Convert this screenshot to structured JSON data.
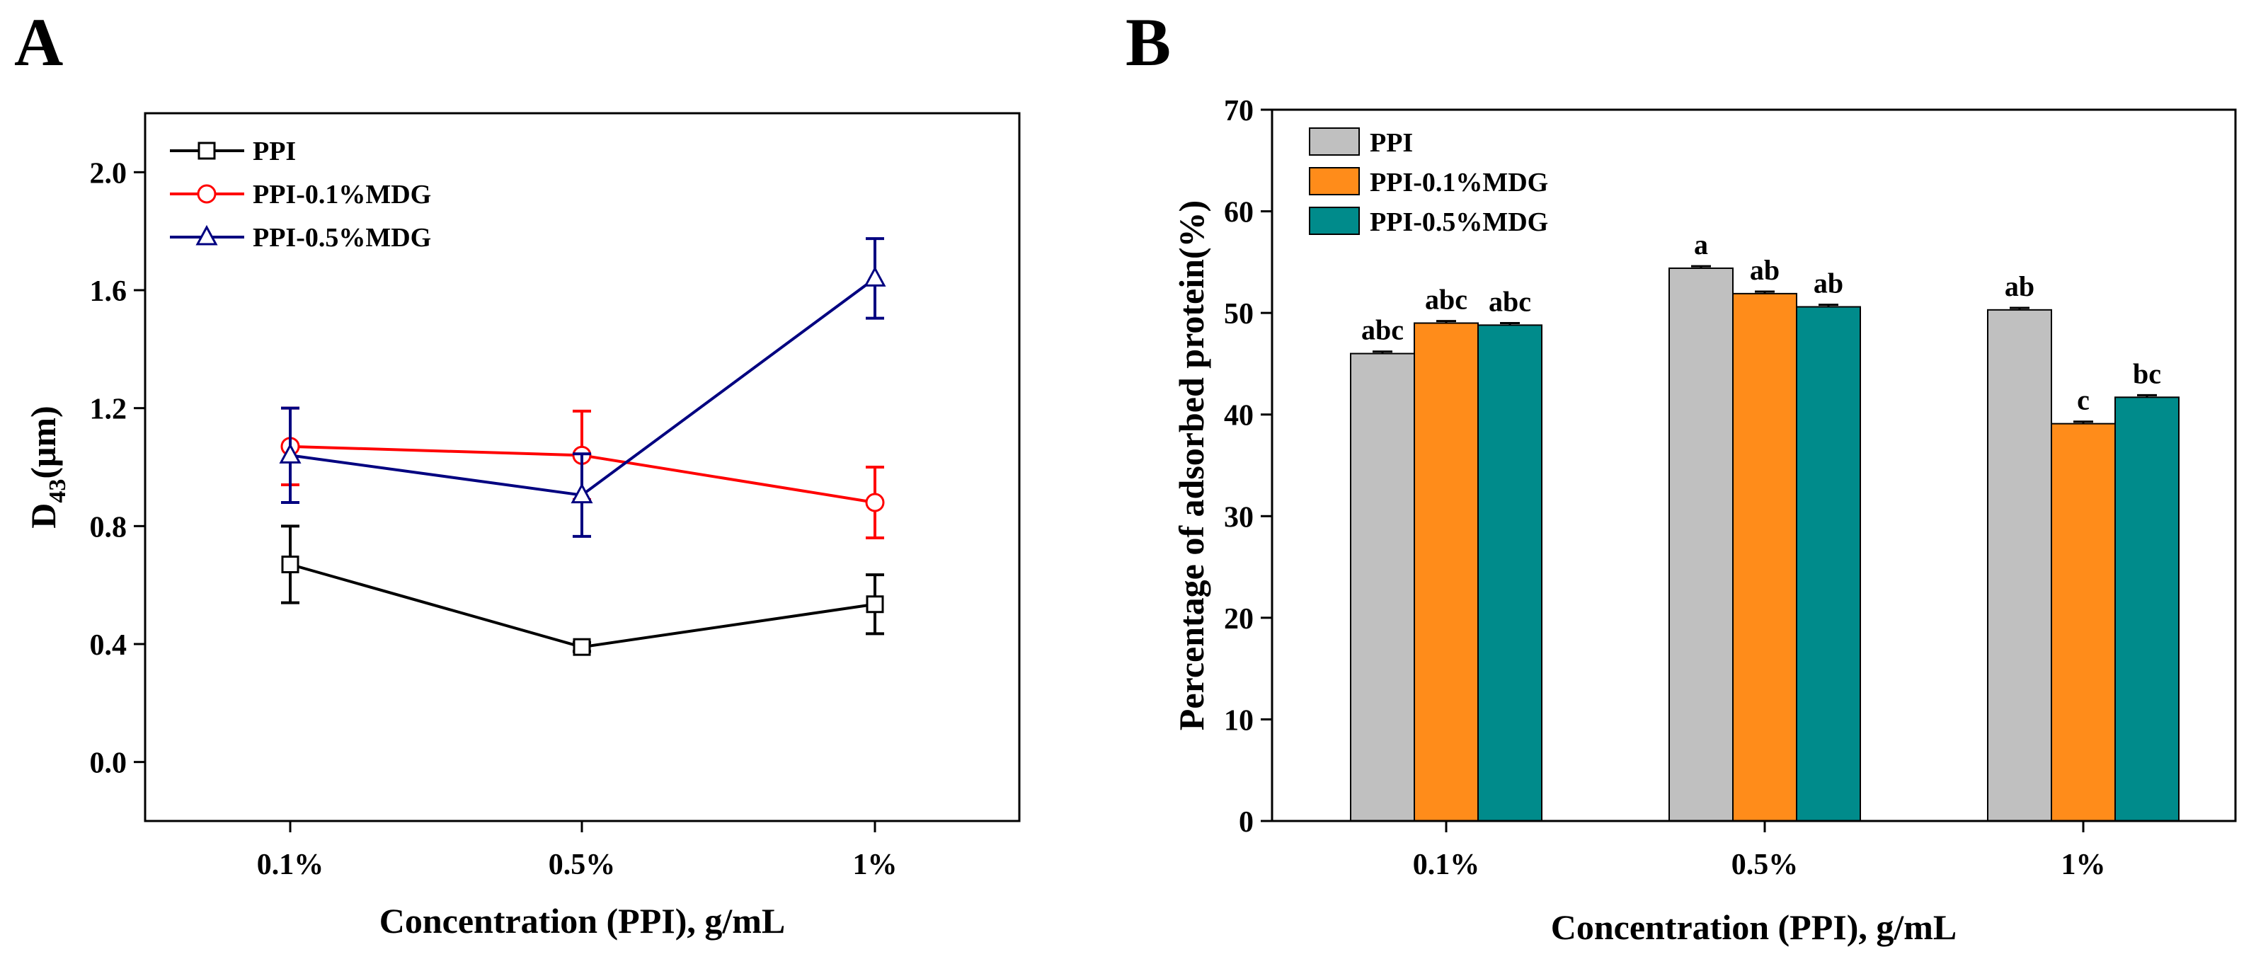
{
  "chart_data": [
    {
      "panel_label": "A",
      "type": "line",
      "categories": [
        "0.1%",
        "0.5%",
        "1%"
      ],
      "xlabel": "Concentration (PPI), g/mL",
      "ylabel_main": "D",
      "ylabel_sub": "43",
      "ylabel_tail": "(μm)",
      "ylim": [
        -0.2,
        2.2
      ],
      "yticks": [
        0.0,
        0.4,
        0.8,
        1.2,
        1.6,
        2.0
      ],
      "ytick_labels": [
        "0.0",
        "0.4",
        "0.8",
        "1.2",
        "1.6",
        "2.0"
      ],
      "legend_position": "top-left",
      "series": [
        {
          "name": "PPI",
          "color": "#000000",
          "marker": "square",
          "values": [
            0.67,
            0.39,
            0.535
          ],
          "errors": [
            0.13,
            0.015,
            0.1
          ]
        },
        {
          "name": "PPI-0.1%MDG",
          "color": "#ff0000",
          "marker": "circle",
          "values": [
            1.07,
            1.04,
            0.88
          ],
          "errors": [
            0.13,
            0.15,
            0.12
          ]
        },
        {
          "name": "PPI-0.5%MDG",
          "color": "#000080",
          "marker": "triangle",
          "values": [
            1.04,
            0.905,
            1.64
          ],
          "errors": [
            0.16,
            0.14,
            0.135
          ]
        }
      ]
    },
    {
      "panel_label": "B",
      "type": "bar",
      "categories": [
        "0.1%",
        "0.5%",
        "1%"
      ],
      "xlabel": "Concentration (PPI), g/mL",
      "ylabel": "Percentage of adsorbed protein(%)",
      "ylim": [
        0,
        70
      ],
      "yticks": [
        0,
        10,
        20,
        30,
        40,
        50,
        60,
        70
      ],
      "ytick_labels": [
        "0",
        "10",
        "20",
        "30",
        "40",
        "50",
        "60",
        "70"
      ],
      "legend_position": "top-left",
      "series": [
        {
          "name": "PPI",
          "color": "#c0c0c0",
          "values": [
            46.0,
            54.4,
            50.3
          ],
          "errors": [
            0.2,
            0.2,
            0.2
          ],
          "labels": [
            "abc",
            "a",
            "ab"
          ]
        },
        {
          "name": "PPI-0.1%MDG",
          "color": "#ff8c1a",
          "values": [
            49.0,
            51.9,
            39.1
          ],
          "errors": [
            0.2,
            0.2,
            0.2
          ],
          "labels": [
            "abc",
            "ab",
            "c"
          ]
        },
        {
          "name": "PPI-0.5%MDG",
          "color": "#008b8b",
          "values": [
            48.8,
            50.6,
            41.7
          ],
          "errors": [
            0.2,
            0.2,
            0.2
          ],
          "labels": [
            "abc",
            "ab",
            "bc"
          ]
        }
      ]
    }
  ]
}
